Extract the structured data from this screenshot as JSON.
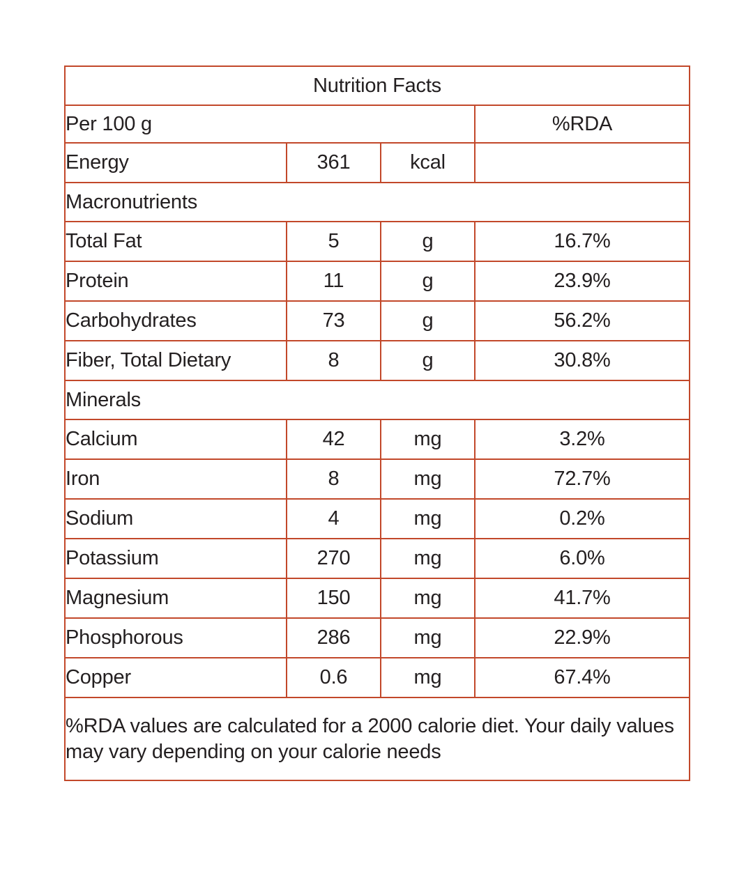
{
  "colors": {
    "accent": "#c2482a",
    "text": "#231f20",
    "background": "#ffffff"
  },
  "table": {
    "title": "Nutrition Facts",
    "serving_header": "Per 100 g",
    "rda_header": "%RDA",
    "energy": {
      "label": "Energy",
      "value": "361",
      "unit": "kcal",
      "rda": ""
    },
    "macronutrients": {
      "header": "Macronutrients",
      "rows": [
        {
          "label": "Total Fat",
          "value": "5",
          "unit": "g",
          "rda": "16.7%"
        },
        {
          "label": "Protein",
          "value": "11",
          "unit": "g",
          "rda": "23.9%"
        },
        {
          "label": "Carbohydrates",
          "value": "73",
          "unit": "g",
          "rda": "56.2%"
        },
        {
          "label": "Fiber, Total Dietary",
          "value": "8",
          "unit": "g",
          "rda": "30.8%"
        }
      ]
    },
    "minerals": {
      "header": "Minerals",
      "rows": [
        {
          "label": "Calcium",
          "value": "42",
          "unit": "mg",
          "rda": "3.2%"
        },
        {
          "label": "Iron",
          "value": "8",
          "unit": "mg",
          "rda": "72.7%"
        },
        {
          "label": "Sodium",
          "value": "4",
          "unit": "mg",
          "rda": "0.2%"
        },
        {
          "label": "Potassium",
          "value": "270",
          "unit": "mg",
          "rda": "6.0%"
        },
        {
          "label": "Magnesium",
          "value": "150",
          "unit": "mg",
          "rda": "41.7%"
        },
        {
          "label": "Phosphorous",
          "value": "286",
          "unit": "mg",
          "rda": "22.9%"
        },
        {
          "label": "Copper",
          "value": "0.6",
          "unit": "mg",
          "rda": "67.4%"
        }
      ]
    },
    "footnote": "%RDA values are calculated for a 2000 calorie diet. Your daily values may vary depending on your calorie needs"
  }
}
